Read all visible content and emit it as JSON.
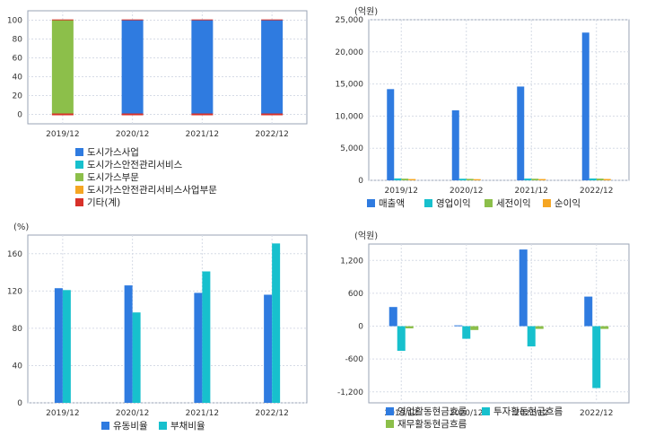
{
  "colors": {
    "blue": "#2f7be0",
    "cyan": "#17c0cd",
    "green": "#8cbf4a",
    "orange": "#f5a623",
    "red": "#d8312a",
    "grid": "#d6dbe6",
    "axis": "#9aa3b4"
  },
  "chart_data": [
    {
      "type": "bar",
      "stacked": true,
      "unit": "",
      "categories": [
        "2019/12",
        "2020/12",
        "2021/12",
        "2022/12"
      ],
      "ylim": [
        -10,
        110
      ],
      "yticks": [
        0,
        20,
        40,
        60,
        80,
        100
      ],
      "ytick_labels": [
        "0",
        "20",
        "40",
        "60",
        "80",
        "100"
      ],
      "grid": true,
      "legend_position": "bottom",
      "series": [
        {
          "name": "도시가스사업",
          "color": "#2f7be0",
          "values": [
            0,
            100,
            100,
            100
          ]
        },
        {
          "name": "도시가스안전관리서비스",
          "color": "#17c0cd",
          "values": [
            0,
            0,
            0,
            0
          ]
        },
        {
          "name": "도시가스부문",
          "color": "#8cbf4a",
          "values": [
            100,
            0,
            0,
            0
          ]
        },
        {
          "name": "도시가스안전관리서비스사업부문",
          "color": "#f5a623",
          "values": [
            0,
            0,
            0,
            0
          ]
        },
        {
          "name": "기타(계)",
          "color": "#d8312a",
          "values": [
            0.8,
            0.8,
            0.8,
            0.8
          ]
        }
      ]
    },
    {
      "type": "bar",
      "unit": "(억원)",
      "categories": [
        "2019/12",
        "2020/12",
        "2021/12",
        "2022/12"
      ],
      "ylim": [
        0,
        25000
      ],
      "yticks": [
        0,
        5000,
        10000,
        15000,
        20000,
        25000
      ],
      "ytick_labels": [
        "0",
        "5,000",
        "10,000",
        "15,000",
        "20,000",
        "25,000"
      ],
      "grid": true,
      "legend_position": "bottom",
      "series": [
        {
          "name": "매출액",
          "color": "#2f7be0",
          "values": [
            14200,
            10900,
            14600,
            23000
          ]
        },
        {
          "name": "영업이익",
          "color": "#17c0cd",
          "values": [
            300,
            250,
            280,
            290
          ]
        },
        {
          "name": "세전이익",
          "color": "#8cbf4a",
          "values": [
            260,
            230,
            250,
            270
          ]
        },
        {
          "name": "순이익",
          "color": "#f5a623",
          "values": [
            200,
            180,
            200,
            210
          ]
        }
      ]
    },
    {
      "type": "bar",
      "unit": "(%)",
      "categories": [
        "2019/12",
        "2020/12",
        "2021/12",
        "2022/12"
      ],
      "ylim": [
        0,
        180
      ],
      "yticks": [
        0,
        40,
        80,
        120,
        160
      ],
      "ytick_labels": [
        "0",
        "40",
        "80",
        "120",
        "160"
      ],
      "grid": true,
      "legend_position": "bottom",
      "series": [
        {
          "name": "유동비율",
          "color": "#2f7be0",
          "values": [
            123,
            126,
            118,
            116
          ]
        },
        {
          "name": "부채비율",
          "color": "#17c0cd",
          "values": [
            121,
            97,
            141,
            171
          ]
        }
      ]
    },
    {
      "type": "bar",
      "unit": "(억원)",
      "categories": [
        "2019/12",
        "2020/12",
        "2021/12",
        "2022/12"
      ],
      "ylim": [
        -1400,
        1500
      ],
      "yticks": [
        -1200,
        -600,
        0,
        600,
        1200
      ],
      "ytick_labels": [
        "-1,200",
        "-600",
        "0",
        "600",
        "1,200"
      ],
      "grid": true,
      "legend_position": "bottom",
      "series": [
        {
          "name": "영업활동현금흐름",
          "color": "#2f7be0",
          "values": [
            350,
            15,
            1400,
            540
          ]
        },
        {
          "name": "투자활동현금흐름",
          "color": "#17c0cd",
          "values": [
            -450,
            -230,
            -370,
            -1130
          ]
        },
        {
          "name": "재무활동현금흐름",
          "color": "#8cbf4a",
          "values": [
            -40,
            -70,
            -50,
            -50
          ]
        }
      ]
    }
  ]
}
